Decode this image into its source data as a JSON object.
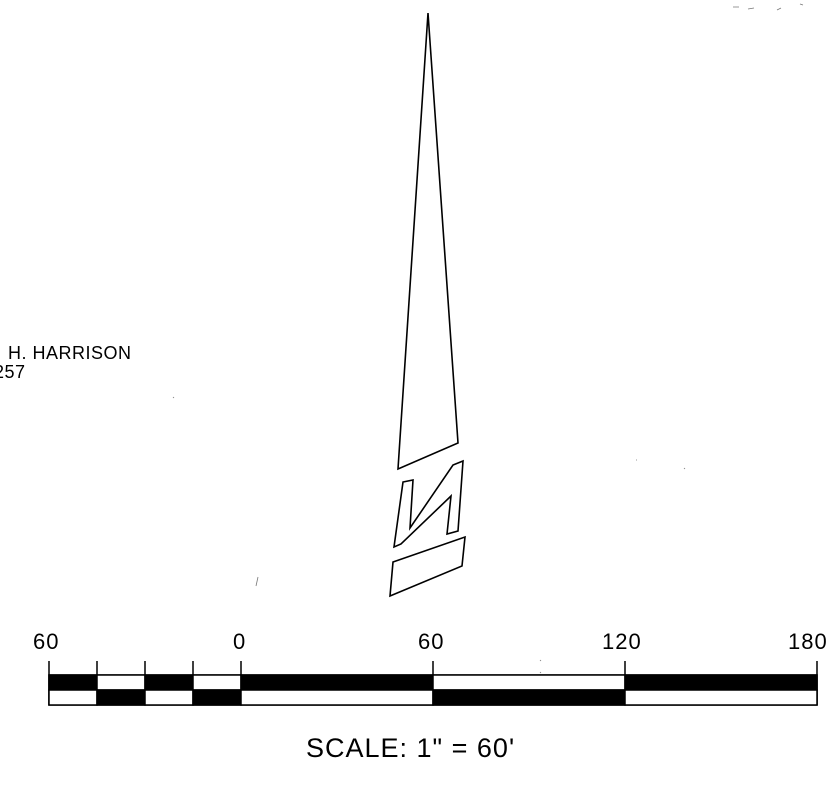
{
  "owner_label": {
    "name": "H. HARRISON",
    "number": "257"
  },
  "north_arrow": {
    "letter": "N",
    "icon": "north-arrow-icon"
  },
  "scale_bar": {
    "tick_labels": [
      "60",
      "0",
      "60",
      "120",
      "180"
    ],
    "caption": "SCALE:  1\"  =  60'"
  },
  "colors": {
    "ink": "#000000",
    "paper": "#ffffff"
  }
}
